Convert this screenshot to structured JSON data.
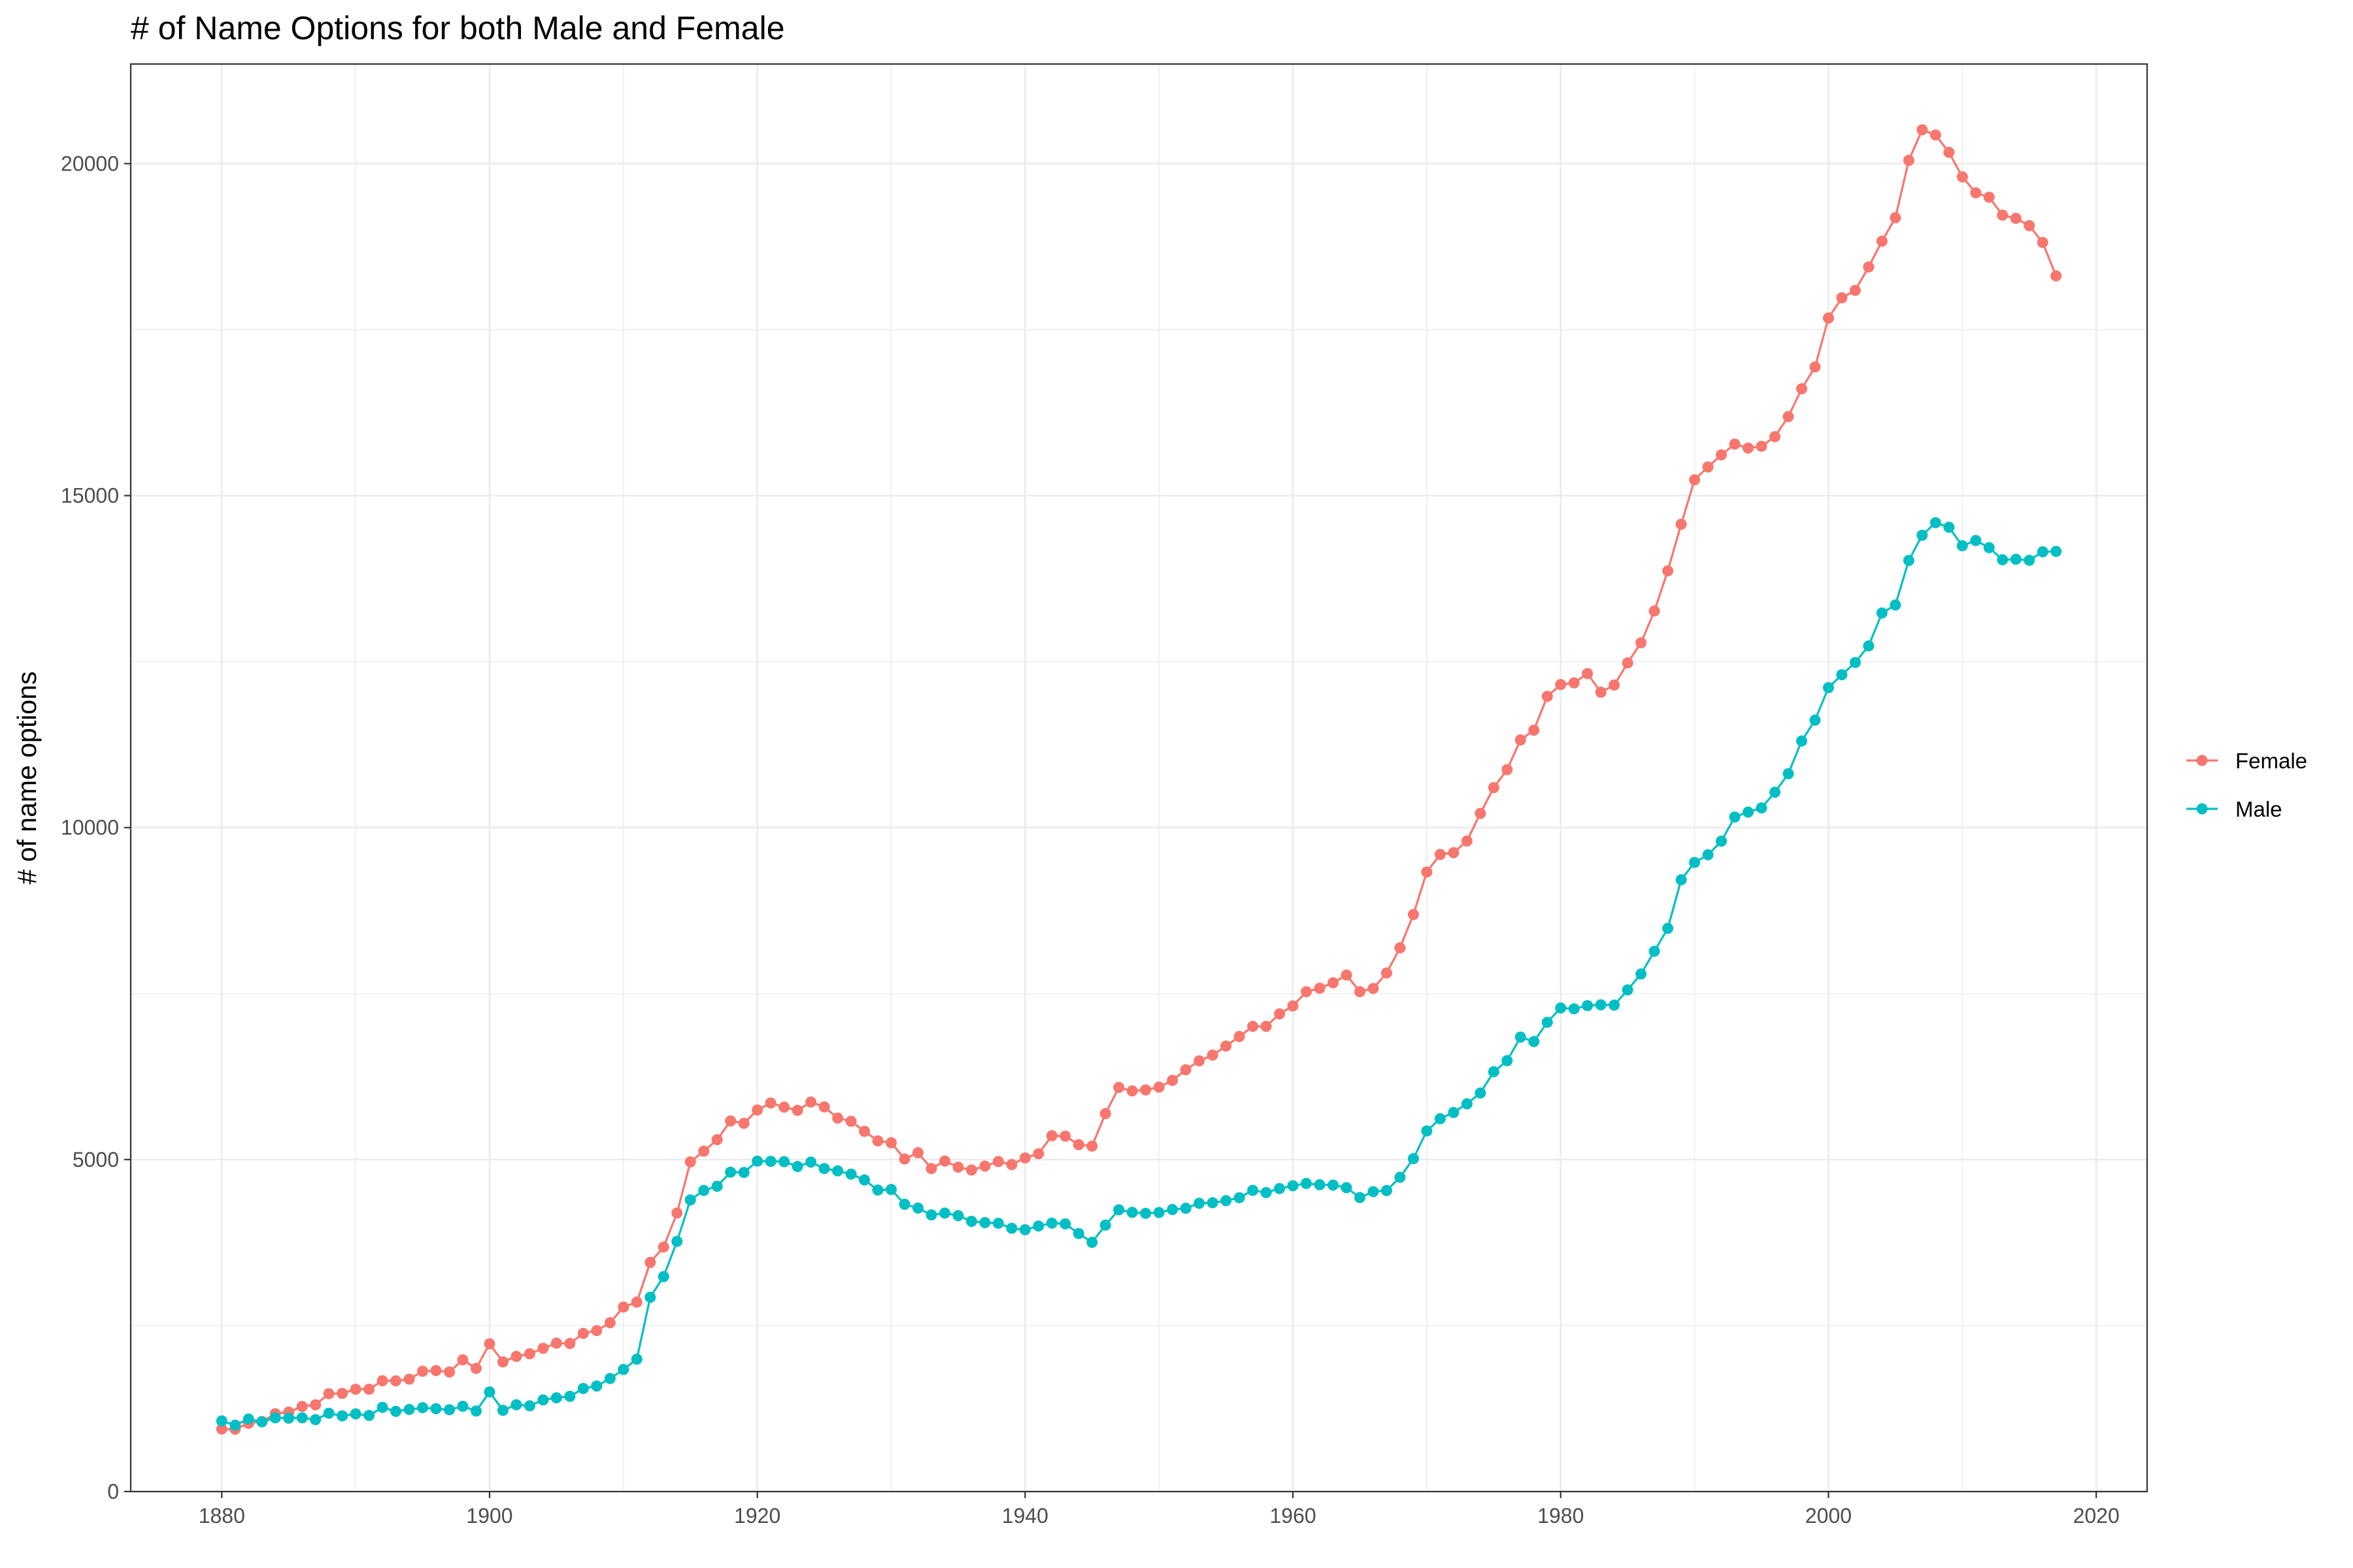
{
  "chart_data": {
    "type": "line",
    "title": "# of Name Options for both Male and Female",
    "xlabel": "",
    "ylabel": "# of name options",
    "xlim": [
      1873.2,
      2023.8
    ],
    "ylim": [
      0,
      21500
    ],
    "x_ticks": [
      1880,
      1900,
      1920,
      1940,
      1960,
      1980,
      2000,
      2020
    ],
    "x_tick_labels": [
      "1880",
      "1900",
      "1920",
      "1940",
      "1960",
      "1980",
      "2000",
      "2020"
    ],
    "y_ticks": [
      0,
      5000,
      10000,
      15000,
      20000
    ],
    "y_tick_labels": [
      "0",
      "5000",
      "10000",
      "15000",
      "20000"
    ],
    "grid": true,
    "legend_position": "right",
    "series": [
      {
        "name": "Female",
        "color": "#F8766D",
        "x_start": 1880,
        "x_end": 2017,
        "values": [
          942,
          938,
          1028,
          1055,
          1172,
          1197,
          1282,
          1306,
          1474,
          1479,
          1541,
          1541,
          1669,
          1668,
          1693,
          1812,
          1822,
          1801,
          1984,
          1855,
          2225,
          1953,
          2036,
          2075,
          2158,
          2235,
          2230,
          2382,
          2424,
          2542,
          2779,
          2853,
          3451,
          3683,
          4195,
          4965,
          5126,
          5300,
          5582,
          5546,
          5747,
          5852,
          5791,
          5741,
          5867,
          5793,
          5625,
          5577,
          5426,
          5282,
          5253,
          5009,
          5103,
          4865,
          4978,
          4886,
          4843,
          4901,
          4970,
          4925,
          5025,
          5088,
          5359,
          5353,
          5225,
          5203,
          5692,
          6086,
          6034,
          6049,
          6091,
          6193,
          6353,
          6487,
          6573,
          6710,
          6853,
          7006,
          7006,
          7194,
          7314,
          7528,
          7580,
          7663,
          7779,
          7529,
          7577,
          7810,
          8189,
          8691,
          9331,
          9595,
          9622,
          9798,
          10214,
          10602,
          10873,
          11321,
          11467,
          11976,
          12154,
          12179,
          12319,
          12039,
          12147,
          12480,
          12783,
          13261,
          13867,
          14568,
          15238,
          15431,
          15613,
          15776,
          15716,
          15743,
          15888,
          16190,
          16609,
          16938,
          17675,
          17979,
          18091,
          18443,
          18832,
          19185,
          20049,
          20510,
          20431,
          20170,
          19800,
          19560,
          19494,
          19225,
          19175,
          19066,
          18812,
          18309
        ]
      },
      {
        "name": "Male",
        "color": "#00BFC4",
        "x_start": 1880,
        "x_end": 2017,
        "values": [
          1064,
          999,
          1093,
          1050,
          1111,
          1106,
          1111,
          1083,
          1180,
          1140,
          1170,
          1146,
          1268,
          1208,
          1236,
          1263,
          1248,
          1232,
          1284,
          1213,
          1500,
          1224,
          1307,
          1292,
          1380,
          1412,
          1434,
          1552,
          1589,
          1702,
          1839,
          1994,
          2926,
          3237,
          3768,
          4392,
          4535,
          4598,
          4810,
          4806,
          4977,
          4973,
          4969,
          4895,
          4962,
          4865,
          4830,
          4781,
          4693,
          4541,
          4550,
          4327,
          4269,
          4166,
          4194,
          4156,
          4070,
          4050,
          4041,
          3965,
          3943,
          3999,
          4043,
          4032,
          3886,
          3754,
          4013,
          4244,
          4205,
          4190,
          4203,
          4247,
          4267,
          4342,
          4350,
          4381,
          4426,
          4536,
          4503,
          4563,
          4606,
          4641,
          4621,
          4616,
          4577,
          4428,
          4517,
          4534,
          4733,
          5014,
          5431,
          5615,
          5709,
          5840,
          6002,
          6323,
          6489,
          6845,
          6777,
          7067,
          7283,
          7270,
          7319,
          7331,
          7327,
          7555,
          7796,
          8137,
          8483,
          9214,
          9475,
          9590,
          9795,
          10158,
          10233,
          10296,
          10532,
          10811,
          11305,
          11618,
          12108,
          12302,
          12486,
          12737,
          13232,
          13353,
          14023,
          14403,
          14592,
          14524,
          14245,
          14323,
          14216,
          14034,
          14041,
          14026,
          14153,
          14160
        ]
      }
    ]
  }
}
